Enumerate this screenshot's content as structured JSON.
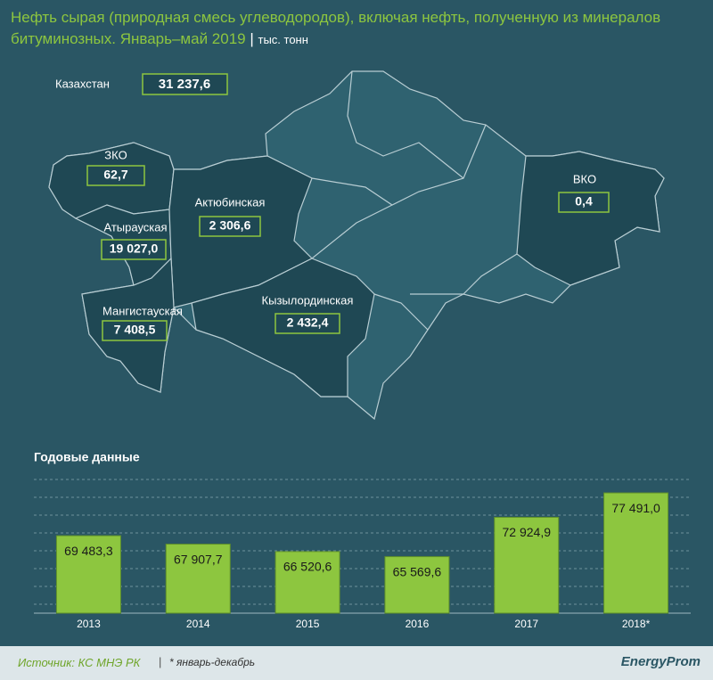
{
  "header": {
    "title": "Нефть сырая (природная смесь углеводородов), включая нефть, полученную из минералов битуминозных. Январь–май 2019",
    "unit": "тыс. тонн"
  },
  "map": {
    "total": {
      "name": "Казахстан",
      "value": "31 237,6"
    },
    "regions": [
      {
        "name": "ЗКО",
        "value": "62,7"
      },
      {
        "name": "Актюбинская",
        "value": "2 306,6"
      },
      {
        "name": "ВКО",
        "value": "0,4"
      },
      {
        "name": "Атырауская",
        "value": "19 027,0"
      },
      {
        "name": "Мангистауская",
        "value": "7 408,5"
      },
      {
        "name": "Кызылординская",
        "value": "2 432,4"
      }
    ]
  },
  "chart_data": {
    "type": "bar",
    "title": "Годовые данные",
    "categories": [
      "2013",
      "2014",
      "2015",
      "2016",
      "2017",
      "2018*"
    ],
    "values": [
      69483.3,
      67907.7,
      66520.6,
      65569.6,
      72924.9,
      77491.0
    ],
    "value_labels": [
      "69 483,3",
      "67 907,7",
      "66 520,6",
      "65 569,6",
      "72 924,9",
      "77 491,0"
    ],
    "color": "#8dc63f",
    "ylim": [
      55000,
      80000
    ],
    "grid": true
  },
  "footer": {
    "source": "Источник: КС МНЭ РК",
    "note": "* январь-декабрь",
    "logo": "EnergyProm"
  }
}
